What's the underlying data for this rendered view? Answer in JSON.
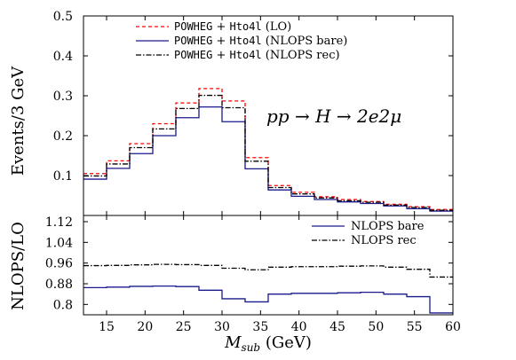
{
  "chart_data": [
    {
      "type": "line",
      "step": true,
      "annotation": "pp → H → 2e2μ",
      "ylabel": "Events/3 GeV",
      "xlim": [
        12,
        60
      ],
      "ylim": [
        0,
        0.5
      ],
      "yticks": [
        "0.1",
        "0.2",
        "0.3",
        "0.4",
        "0.5"
      ],
      "ytick_values": [
        0.1,
        0.2,
        0.3,
        0.4,
        0.5
      ],
      "legend_position": "top-left",
      "bin_edges": [
        12,
        15,
        18,
        21,
        24,
        27,
        30,
        33,
        36,
        39,
        42,
        45,
        48,
        51,
        54,
        57,
        60
      ],
      "series": [
        {
          "name": "POWHEG + Hto4l (LO)",
          "legend_parts": [
            "POWHEG",
            " + ",
            "Hto4l",
            " (LO)"
          ],
          "color": "#ff0000",
          "dash": "4,3",
          "values": [
            0.105,
            0.137,
            0.18,
            0.23,
            0.282,
            0.318,
            0.287,
            0.145,
            0.075,
            0.058,
            0.047,
            0.04,
            0.035,
            0.028,
            0.022,
            0.015
          ]
        },
        {
          "name": "POWHEG + Hto4l (NLOPS bare)",
          "legend_parts": [
            "POWHEG",
            " + ",
            "Hto4l",
            " (NLOPS bare)"
          ],
          "color": "#1a1a8c",
          "dash": "",
          "values": [
            0.091,
            0.118,
            0.155,
            0.2,
            0.245,
            0.272,
            0.235,
            0.117,
            0.064,
            0.048,
            0.04,
            0.034,
            0.03,
            0.024,
            0.017,
            0.011
          ]
        },
        {
          "name": "POWHEG + Hto4l (NLOPS rec)",
          "legend_parts": [
            "POWHEG",
            " + ",
            "Hto4l",
            " (NLOPS rec)"
          ],
          "color": "#000000",
          "dash": "6,2,1.5,2",
          "values": [
            0.099,
            0.129,
            0.17,
            0.217,
            0.268,
            0.301,
            0.27,
            0.136,
            0.07,
            0.054,
            0.044,
            0.037,
            0.033,
            0.026,
            0.02,
            0.013
          ]
        }
      ]
    },
    {
      "type": "line",
      "step": true,
      "xlabel": "M",
      "xlabel_sub": "sub",
      "xlabel_unit": " (GeV)",
      "ylabel": "NLOPS/LO",
      "xlim": [
        12,
        60
      ],
      "ylim": [
        0.76,
        1.144
      ],
      "xticks": [
        "15",
        "20",
        "25",
        "30",
        "35",
        "40",
        "45",
        "50",
        "55",
        "60"
      ],
      "xtick_values": [
        15,
        20,
        25,
        30,
        35,
        40,
        45,
        50,
        55,
        60
      ],
      "yticks": [
        "0.8",
        "0.88",
        "0.96",
        "1.04",
        "1.12"
      ],
      "ytick_values": [
        0.8,
        0.88,
        0.96,
        1.04,
        1.12
      ],
      "legend_position": "top-right",
      "bin_edges": [
        12,
        15,
        18,
        21,
        24,
        27,
        30,
        33,
        36,
        39,
        42,
        45,
        48,
        51,
        54,
        57,
        60
      ],
      "series": [
        {
          "name": "NLOPS bare",
          "color": "#1a1a8c",
          "dash": "",
          "values": [
            0.865,
            0.867,
            0.87,
            0.871,
            0.869,
            0.855,
            0.822,
            0.81,
            0.84,
            0.843,
            0.843,
            0.845,
            0.847,
            0.84,
            0.83,
            0.767
          ]
        },
        {
          "name": "NLOPS rec",
          "color": "#000000",
          "dash": "6,2,1.5,2",
          "values": [
            0.95,
            0.951,
            0.953,
            0.955,
            0.954,
            0.951,
            0.94,
            0.934,
            0.944,
            0.946,
            0.946,
            0.948,
            0.949,
            0.944,
            0.936,
            0.906
          ]
        }
      ]
    }
  ]
}
